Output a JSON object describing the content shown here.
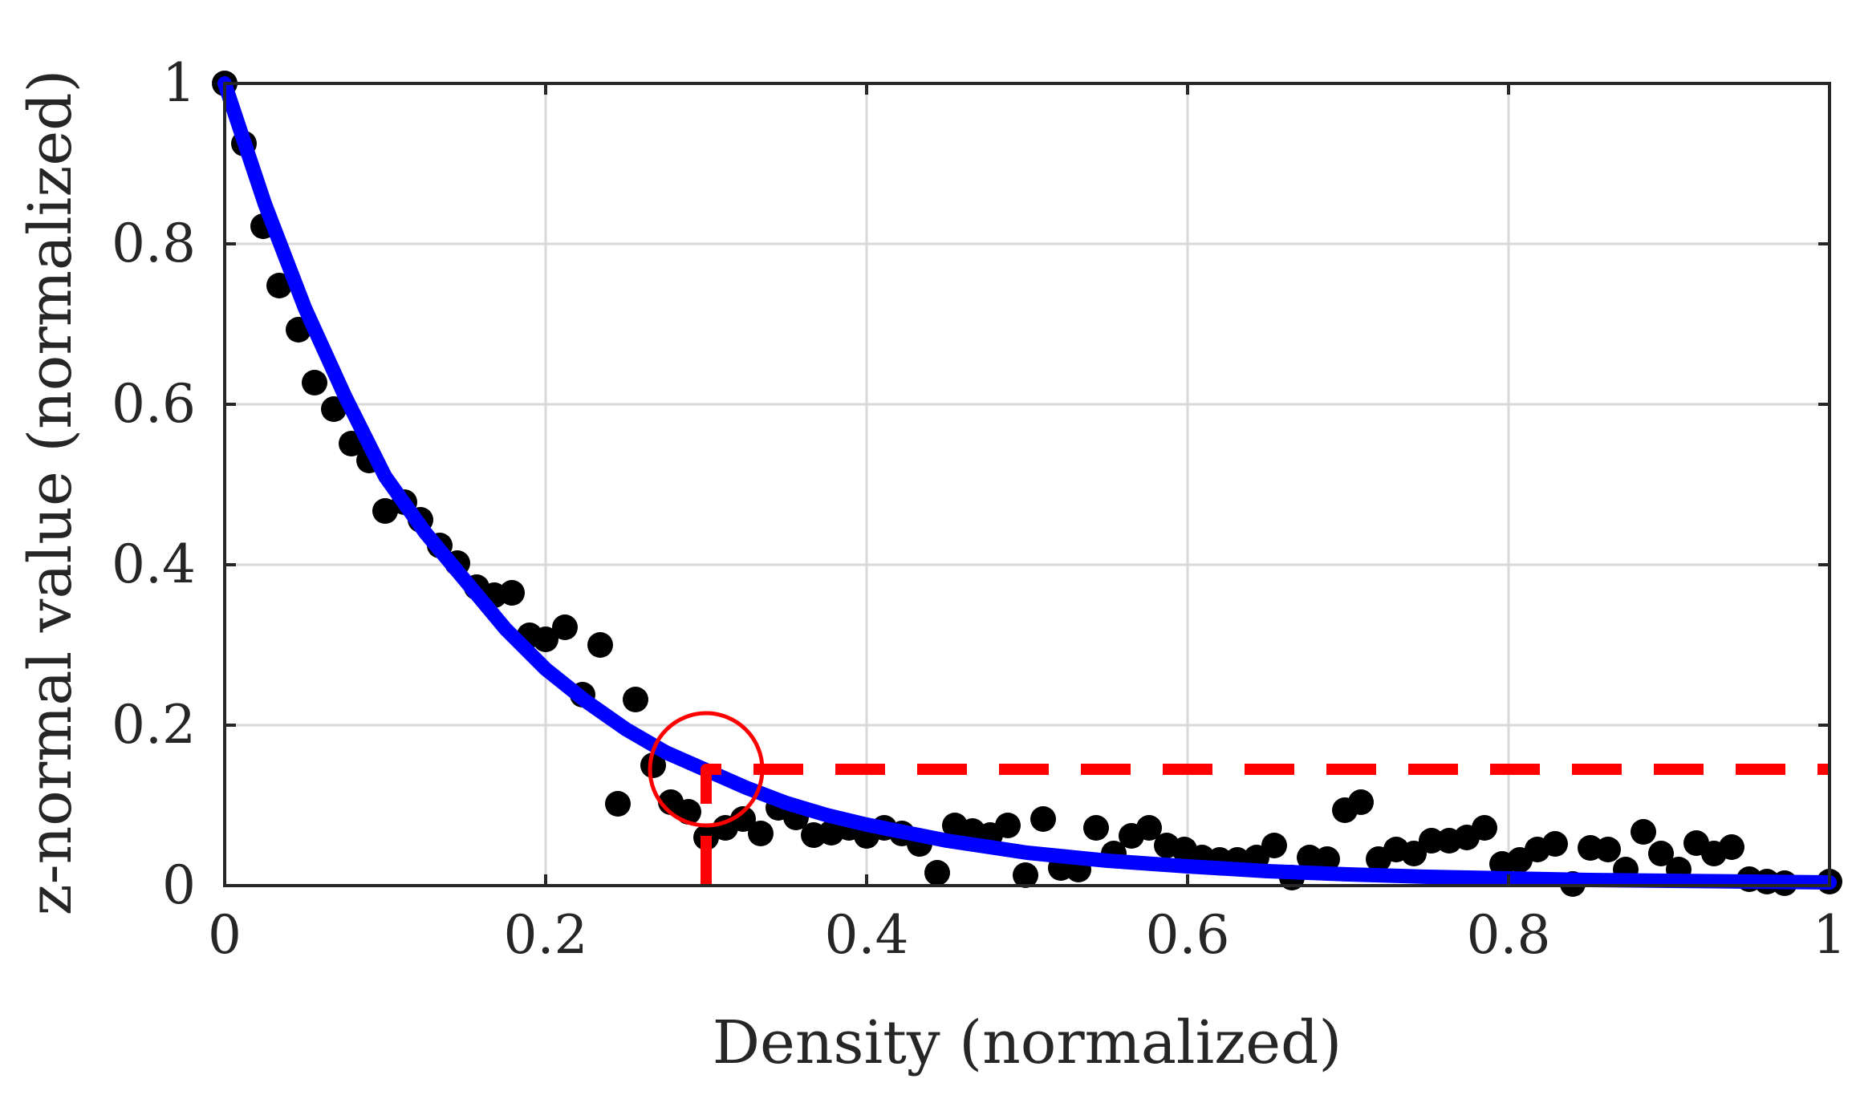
{
  "chart_data": {
    "type": "scatter",
    "xlabel": "Density (normalized)",
    "ylabel": "z-normal value (normalized)",
    "xlim": [
      0,
      1
    ],
    "ylim": [
      0,
      1
    ],
    "xticks": [
      0,
      0.2,
      0.4,
      0.6,
      0.8,
      1
    ],
    "yticks": [
      0,
      0.2,
      0.4,
      0.6,
      0.8,
      1
    ],
    "xtick_labels": [
      "0",
      "0.2",
      "0.4",
      "0.6",
      "0.8",
      "1"
    ],
    "ytick_labels": [
      "0",
      "0.2",
      "0.4",
      "0.6",
      "0.8",
      "1"
    ],
    "grid": true,
    "series": [
      {
        "kind": "scatter",
        "color": "#000000",
        "points": [
          [
            0.0,
            1.0
          ],
          [
            0.012,
            0.925
          ],
          [
            0.024,
            0.822
          ],
          [
            0.034,
            0.748
          ],
          [
            0.046,
            0.693
          ],
          [
            0.056,
            0.627
          ],
          [
            0.068,
            0.594
          ],
          [
            0.079,
            0.551
          ],
          [
            0.09,
            0.53
          ],
          [
            0.1,
            0.467
          ],
          [
            0.112,
            0.478
          ],
          [
            0.122,
            0.456
          ],
          [
            0.134,
            0.424
          ],
          [
            0.145,
            0.402
          ],
          [
            0.157,
            0.372
          ],
          [
            0.168,
            0.362
          ],
          [
            0.179,
            0.365
          ],
          [
            0.19,
            0.312
          ],
          [
            0.2,
            0.307
          ],
          [
            0.212,
            0.322
          ],
          [
            0.223,
            0.238
          ],
          [
            0.234,
            0.3
          ],
          [
            0.245,
            0.102
          ],
          [
            0.256,
            0.232
          ],
          [
            0.267,
            0.15
          ],
          [
            0.278,
            0.104
          ],
          [
            0.289,
            0.092
          ],
          [
            0.3,
            0.06
          ],
          [
            0.312,
            0.072
          ],
          [
            0.323,
            0.083
          ],
          [
            0.334,
            0.065
          ],
          [
            0.345,
            0.097
          ],
          [
            0.356,
            0.085
          ],
          [
            0.367,
            0.063
          ],
          [
            0.378,
            0.066
          ],
          [
            0.389,
            0.072
          ],
          [
            0.4,
            0.062
          ],
          [
            0.411,
            0.072
          ],
          [
            0.422,
            0.065
          ],
          [
            0.433,
            0.052
          ],
          [
            0.444,
            0.016
          ],
          [
            0.455,
            0.075
          ],
          [
            0.466,
            0.068
          ],
          [
            0.477,
            0.063
          ],
          [
            0.488,
            0.075
          ],
          [
            0.499,
            0.013
          ],
          [
            0.51,
            0.083
          ],
          [
            0.521,
            0.022
          ],
          [
            0.532,
            0.02
          ],
          [
            0.543,
            0.072
          ],
          [
            0.554,
            0.04
          ],
          [
            0.565,
            0.062
          ],
          [
            0.576,
            0.072
          ],
          [
            0.587,
            0.05
          ],
          [
            0.598,
            0.045
          ],
          [
            0.609,
            0.035
          ],
          [
            0.62,
            0.032
          ],
          [
            0.631,
            0.032
          ],
          [
            0.643,
            0.035
          ],
          [
            0.654,
            0.05
          ],
          [
            0.665,
            0.01
          ],
          [
            0.676,
            0.035
          ],
          [
            0.687,
            0.033
          ],
          [
            0.698,
            0.094
          ],
          [
            0.708,
            0.104
          ],
          [
            0.719,
            0.033
          ],
          [
            0.73,
            0.045
          ],
          [
            0.741,
            0.04
          ],
          [
            0.752,
            0.056
          ],
          [
            0.763,
            0.056
          ],
          [
            0.774,
            0.06
          ],
          [
            0.785,
            0.072
          ],
          [
            0.796,
            0.027
          ],
          [
            0.807,
            0.032
          ],
          [
            0.818,
            0.045
          ],
          [
            0.829,
            0.052
          ],
          [
            0.84,
            0.002
          ],
          [
            0.851,
            0.047
          ],
          [
            0.862,
            0.045
          ],
          [
            0.873,
            0.02
          ],
          [
            0.884,
            0.067
          ],
          [
            0.895,
            0.04
          ],
          [
            0.906,
            0.02
          ],
          [
            0.917,
            0.053
          ],
          [
            0.928,
            0.04
          ],
          [
            0.939,
            0.048
          ],
          [
            0.95,
            0.008
          ],
          [
            0.961,
            0.005
          ],
          [
            0.972,
            0.003
          ],
          [
            1.0,
            0.005
          ]
        ]
      },
      {
        "kind": "line",
        "color": "#0000ff",
        "style": "solid",
        "x": [
          0,
          0.025,
          0.05,
          0.075,
          0.1,
          0.125,
          0.15,
          0.175,
          0.2,
          0.225,
          0.25,
          0.275,
          0.3,
          0.325,
          0.35,
          0.375,
          0.4,
          0.45,
          0.5,
          0.55,
          0.6,
          0.65,
          0.7,
          0.75,
          0.8,
          0.85,
          0.9,
          0.95,
          1.0
        ],
        "y": [
          1.0,
          0.85,
          0.72,
          0.61,
          0.51,
          0.44,
          0.38,
          0.32,
          0.27,
          0.23,
          0.195,
          0.166,
          0.144,
          0.122,
          0.103,
          0.088,
          0.076,
          0.056,
          0.041,
          0.031,
          0.024,
          0.018,
          0.014,
          0.011,
          0.009,
          0.007,
          0.006,
          0.005,
          0.004
        ]
      },
      {
        "kind": "line",
        "color": "#ff0000",
        "style": "dashed",
        "x": [
          0.3,
          0.3,
          1.0
        ],
        "y": [
          0.0,
          0.145,
          0.145
        ]
      }
    ],
    "annotations": [
      {
        "kind": "circle",
        "color": "#ff0000",
        "x": 0.3,
        "y": 0.145
      }
    ]
  }
}
